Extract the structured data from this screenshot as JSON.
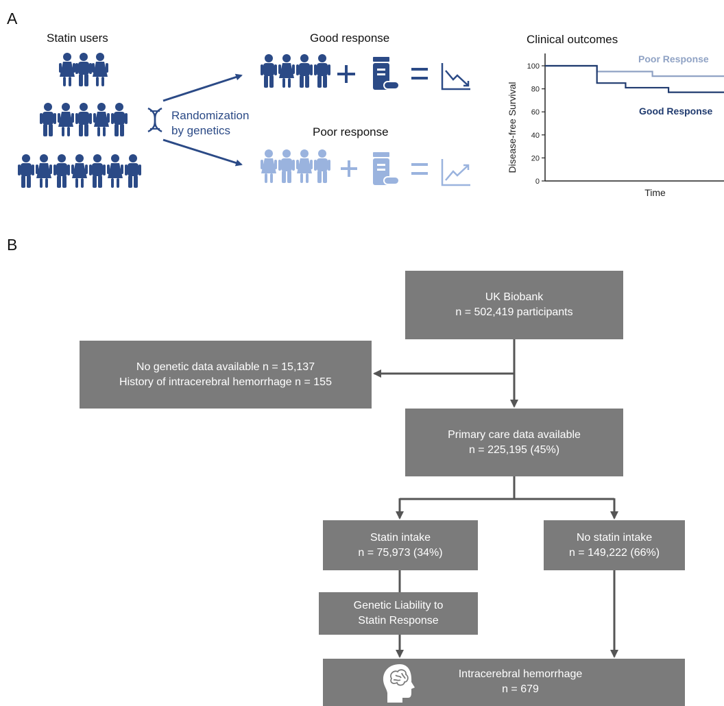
{
  "panel_a": {
    "label": "A",
    "statin_users_title": "Statin users",
    "randomization_line1": "Randomization",
    "randomization_line2": "by genetics",
    "good_response_title": "Good response",
    "poor_response_title": "Poor response",
    "clinical_outcomes_title": "Clinical outcomes",
    "colors": {
      "dark_blue": "#2b4a86",
      "light_blue": "#9ab3de",
      "poor_line": "#8fa2c4",
      "good_line": "#1f3a6e"
    }
  },
  "chart_data": {
    "type": "line",
    "title": "Clinical outcomes",
    "xlabel": "Time",
    "ylabel": "Disease-free Survival",
    "ylim": [
      0,
      100
    ],
    "yticks": [
      "0",
      "20",
      "40",
      "60",
      "80",
      "100"
    ],
    "grid": false,
    "series": [
      {
        "name": "Poor Response",
        "step": true,
        "x": [
          0,
          0.29,
          0.29,
          0.6,
          0.6,
          0.88,
          0.88,
          1.0
        ],
        "y": [
          100,
          100,
          95,
          95,
          91,
          91,
          91,
          91
        ]
      },
      {
        "name": "Good Response",
        "step": true,
        "x": [
          0,
          0.29,
          0.29,
          0.45,
          0.45,
          0.69,
          0.69,
          1.0
        ],
        "y": [
          100,
          100,
          85,
          85,
          81,
          81,
          77,
          77
        ]
      }
    ]
  },
  "panel_b": {
    "label": "B",
    "biobank": {
      "line1": "UK Biobank",
      "line2": "n = 502,419 participants"
    },
    "excluded": {
      "line1": "No genetic data available n = 15,137",
      "line2": "History of intracerebral hemorrhage n = 155"
    },
    "primary_care": {
      "line1": "Primary care data available",
      "line2": "n = 225,195 (45%)"
    },
    "statin": {
      "line1": "Statin intake",
      "line2": "n = 75,973 (34%)"
    },
    "no_statin": {
      "line1": "No statin intake",
      "line2": "n = 149,222 (66%)"
    },
    "liability": {
      "line1": "Genetic Liability to",
      "line2": "Statin Response"
    },
    "ich": {
      "line1": "Intracerebral hemorrhage",
      "line2": "n = 679"
    },
    "colors": {
      "box": "#7b7b7b",
      "arrow": "#555555"
    }
  }
}
